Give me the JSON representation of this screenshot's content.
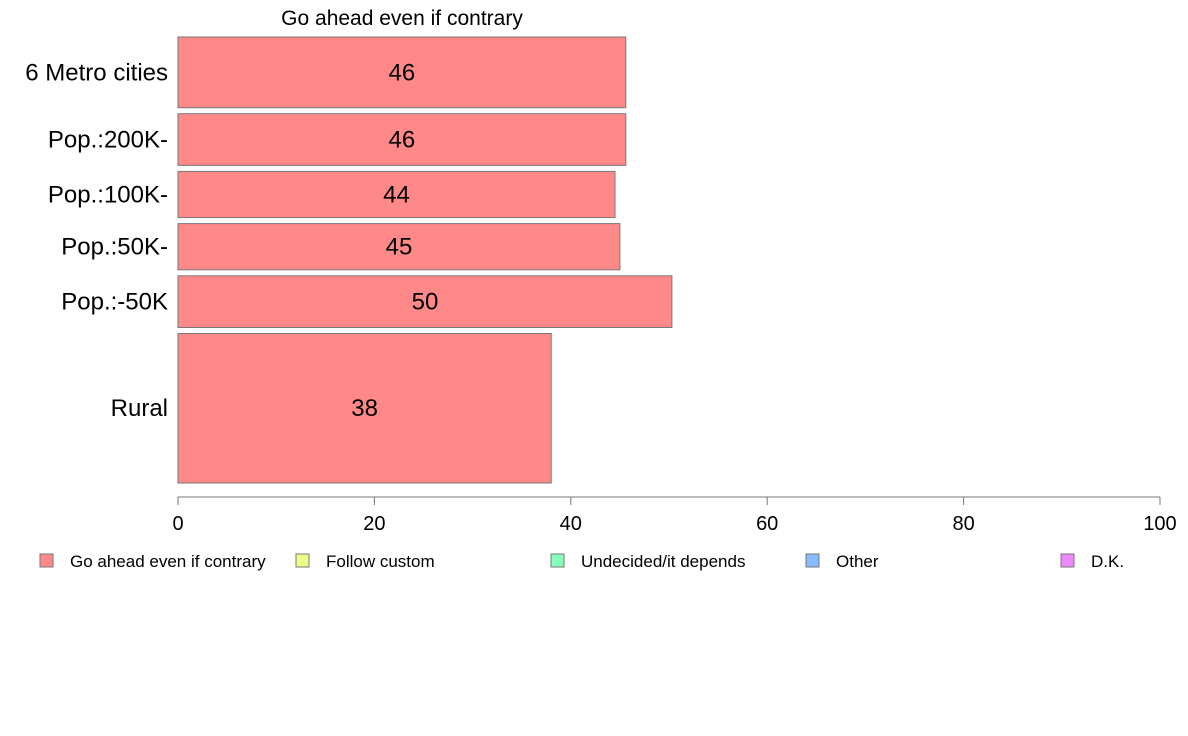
{
  "chart_data": {
    "type": "bar",
    "orientation": "horizontal",
    "title": "Go ahead even if contrary",
    "categories": [
      "6 Metro cities",
      "Pop.:200K-",
      "Pop.:100K-",
      "Pop.:50K-",
      "Pop.:-50K",
      "Rural"
    ],
    "series": [
      {
        "name": "Go ahead even if contrary",
        "color": "#ff8888",
        "values": [
          45.6,
          45.6,
          44.5,
          45.0,
          50.3,
          38.0
        ],
        "labels": [
          "46",
          "46",
          "44",
          "45",
          "50",
          "38"
        ]
      }
    ],
    "category_weights": [
      1.3,
      0.95,
      0.85,
      0.85,
      0.95,
      2.75
    ],
    "xlim": [
      0,
      100
    ],
    "xticks": [
      "0",
      "20",
      "40",
      "60",
      "80",
      "100"
    ],
    "grid": false,
    "legend_position": "bottom",
    "legend": [
      {
        "label": "Go ahead even if contrary",
        "color": "#ff8888"
      },
      {
        "label": "Follow custom",
        "color": "#eeff88"
      },
      {
        "label": "Undecided/it depends",
        "color": "#88ffbb"
      },
      {
        "label": "Other",
        "color": "#88bbff"
      },
      {
        "label": "D.K.",
        "color": "#ee88ff"
      }
    ]
  }
}
